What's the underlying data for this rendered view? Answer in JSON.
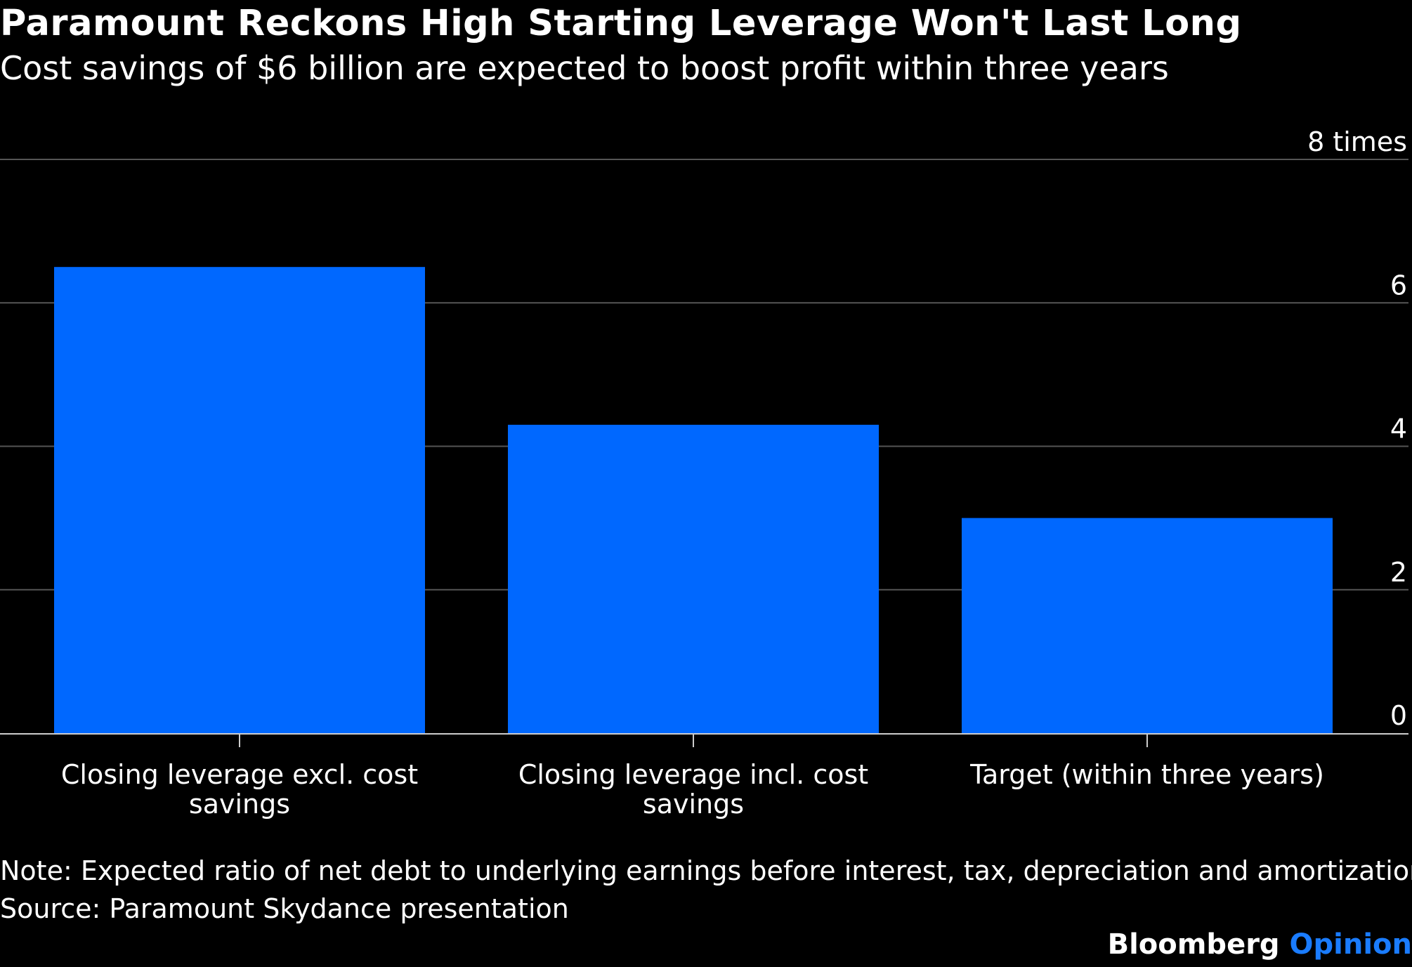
{
  "header": {
    "title": "Paramount Reckons High Starting Leverage Won't Last Long",
    "subtitle": "Cost savings of $6 billion are expected to boost profit within three years"
  },
  "chart_data": {
    "type": "bar",
    "categories": [
      [
        "Closing leverage excl. cost",
        "savings"
      ],
      [
        "Closing leverage incl. cost",
        "savings"
      ],
      [
        "Target (within three years)"
      ]
    ],
    "values": [
      6.5,
      4.3,
      3.0
    ],
    "ylim": [
      0,
      8
    ],
    "y_ticks": [
      0,
      2,
      4,
      6,
      8
    ],
    "y_unit_label": "times",
    "y_axis_position": "right",
    "grid": true,
    "bar_color": "#0068ff",
    "grid_color": "#555555",
    "baseline_color": "#cccccc"
  },
  "footer": {
    "note": "Note: Expected ratio of net debt to underlying earnings before interest, tax, depreciation and amortization.",
    "source": "Source: Paramount Skydance presentation",
    "brand_main": "Bloomberg",
    "brand_accent": "Opinion"
  }
}
